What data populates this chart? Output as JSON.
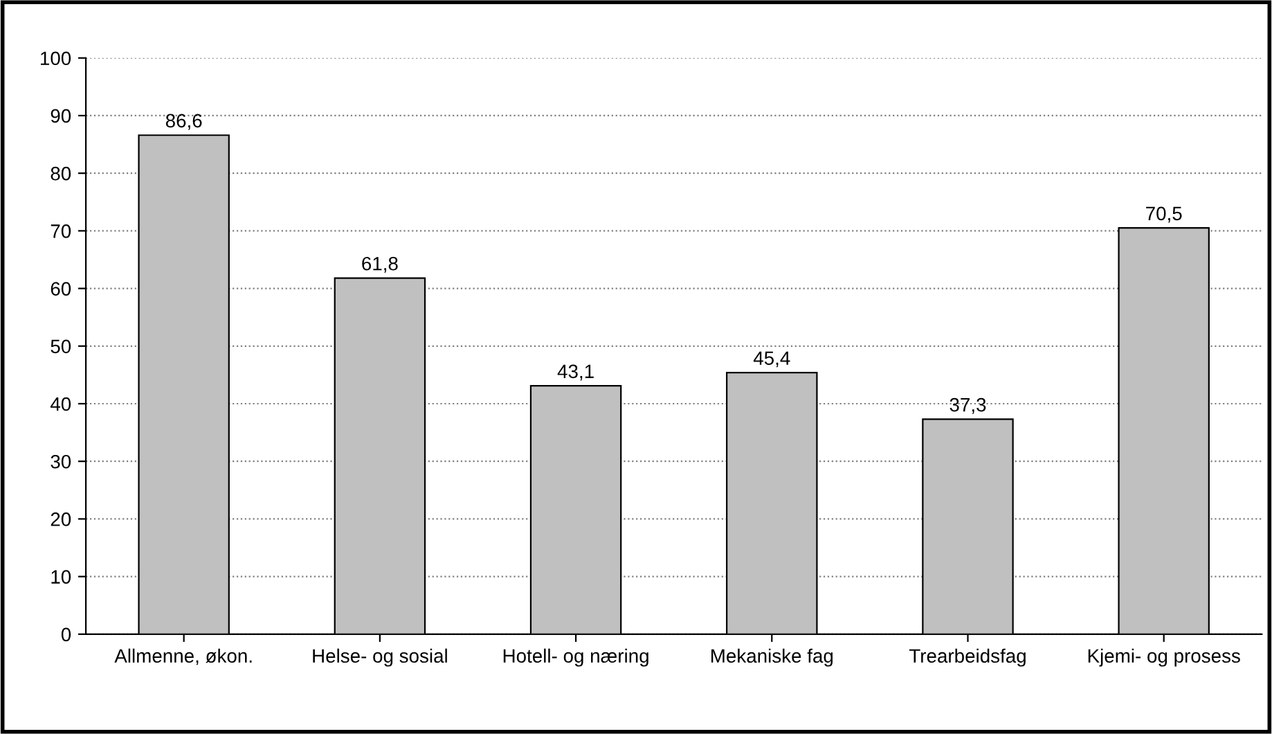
{
  "chart_data": {
    "type": "bar",
    "categories": [
      "Allmenne, økon.",
      "Helse- og sosial",
      "Hotell- og næring",
      "Mekaniske fag",
      "Trearbeidsfag",
      "Kjemi- og prosess"
    ],
    "values": [
      86.6,
      61.8,
      43.1,
      45.4,
      37.3,
      70.5
    ],
    "value_labels": [
      "86,6",
      "61,8",
      "43,1",
      "45,4",
      "37,3",
      "70,5"
    ],
    "color": "#c0c0c0",
    "ylim": [
      0,
      100
    ],
    "yticks": [
      0,
      10,
      20,
      30,
      40,
      50,
      60,
      70,
      80,
      90,
      100
    ],
    "grid": "y",
    "legend": false
  }
}
